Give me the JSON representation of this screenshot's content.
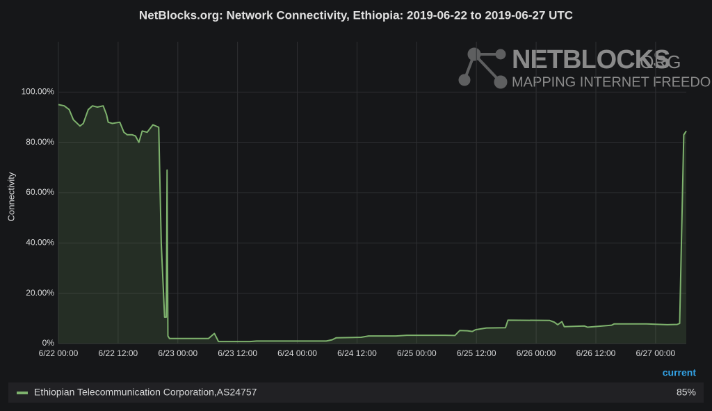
{
  "chart_data": {
    "type": "line",
    "title": "NetBlocks.org: Network Connectivity, Ethiopia: 2019-06-22 to 2019-06-27 UTC",
    "y_label": "Connectivity",
    "watermark": {
      "name": "NETBLOCKS",
      "suffix": ".ORG",
      "tagline": "MAPPING INTERNET FREEDOM"
    },
    "legend_header": "current",
    "grid": true,
    "x": [
      "2019-06-22T00:00",
      "2019-06-22T01:10",
      "2019-06-22T02:10",
      "2019-06-22T03:00",
      "2019-06-22T04:20",
      "2019-06-22T05:00",
      "2019-06-22T06:00",
      "2019-06-22T06:50",
      "2019-06-22T07:50",
      "2019-06-22T09:00",
      "2019-06-22T09:40",
      "2019-06-22T10:00",
      "2019-06-22T10:50",
      "2019-06-22T12:20",
      "2019-06-22T13:10",
      "2019-06-22T13:50",
      "2019-06-22T14:50",
      "2019-06-22T15:30",
      "2019-06-22T16:10",
      "2019-06-22T16:50",
      "2019-06-22T17:50",
      "2019-06-22T19:00",
      "2019-06-22T20:10",
      "2019-06-22T20:40",
      "2019-06-22T21:20",
      "2019-06-22T21:40",
      "2019-06-22T21:50",
      "2019-06-22T22:00",
      "2019-06-22T22:20",
      "2019-06-23T00:40",
      "2019-06-23T06:10",
      "2019-06-23T07:20",
      "2019-06-23T08:10",
      "2019-06-23T14:30",
      "2019-06-23T15:50",
      "2019-06-24T05:50",
      "2019-06-24T07:00",
      "2019-06-24T07:50",
      "2019-06-24T12:50",
      "2019-06-24T14:20",
      "2019-06-24T19:50",
      "2019-06-24T22:00",
      "2019-06-25T05:40",
      "2019-06-25T07:40",
      "2019-06-25T08:40",
      "2019-06-25T10:10",
      "2019-06-25T11:10",
      "2019-06-25T11:50",
      "2019-06-25T14:00",
      "2019-06-25T17:50",
      "2019-06-25T18:20",
      "2019-06-26T02:40",
      "2019-06-26T03:40",
      "2019-06-26T04:20",
      "2019-06-26T05:10",
      "2019-06-26T05:40",
      "2019-06-26T09:40",
      "2019-06-26T10:20",
      "2019-06-26T15:10",
      "2019-06-26T15:40",
      "2019-06-26T22:10",
      "2019-06-27T02:20",
      "2019-06-27T04:20",
      "2019-06-27T04:50",
      "2019-06-27T05:40",
      "2019-06-27T06:10"
    ],
    "series": [
      {
        "name": "Ethiopian Telecommunication Corporation,AS24757",
        "color": "#7eb26d",
        "current": 85,
        "current_label": "85%",
        "values": [
          95,
          94.5,
          93,
          89,
          86.5,
          87.5,
          93,
          94.5,
          94,
          94.5,
          91,
          88,
          87.5,
          88,
          84,
          83,
          83,
          82.5,
          80,
          84.5,
          84,
          87,
          86,
          40,
          10.5,
          10.5,
          69,
          3,
          2,
          2,
          2,
          4,
          0.8,
          0.8,
          1,
          1,
          1.5,
          2.3,
          2.5,
          3,
          3,
          3.3,
          3.3,
          3.2,
          5.2,
          5.1,
          4.8,
          5.5,
          6.2,
          6.3,
          9.3,
          9.2,
          8.5,
          7.5,
          8.7,
          6.7,
          7,
          6.5,
          7.3,
          7.8,
          7.8,
          7.5,
          7.6,
          8,
          83,
          84.5
        ]
      }
    ],
    "xlim": [
      "2019-06-22T00:00",
      "2019-06-27T06:10"
    ],
    "xticks": [
      {
        "value": "2019-06-22T00:00",
        "label": "6/22 00:00"
      },
      {
        "value": "2019-06-22T12:00",
        "label": "6/22 12:00"
      },
      {
        "value": "2019-06-23T00:00",
        "label": "6/23 00:00"
      },
      {
        "value": "2019-06-23T12:00",
        "label": "6/23 12:00"
      },
      {
        "value": "2019-06-24T00:00",
        "label": "6/24 00:00"
      },
      {
        "value": "2019-06-24T12:00",
        "label": "6/24 12:00"
      },
      {
        "value": "2019-06-25T00:00",
        "label": "6/25 00:00"
      },
      {
        "value": "2019-06-25T12:00",
        "label": "6/25 12:00"
      },
      {
        "value": "2019-06-26T00:00",
        "label": "6/26 00:00"
      },
      {
        "value": "2019-06-26T12:00",
        "label": "6/26 12:00"
      },
      {
        "value": "2019-06-27T00:00",
        "label": "6/27 00:00"
      }
    ],
    "ylim": [
      0,
      120
    ],
    "yticks": [
      {
        "value": 0,
        "label": "0%"
      },
      {
        "value": 20,
        "label": "20.00%"
      },
      {
        "value": 40,
        "label": "40.00%"
      },
      {
        "value": 60,
        "label": "60.00%"
      },
      {
        "value": 80,
        "label": "80.00%"
      },
      {
        "value": 100,
        "label": "100.00%"
      }
    ]
  }
}
